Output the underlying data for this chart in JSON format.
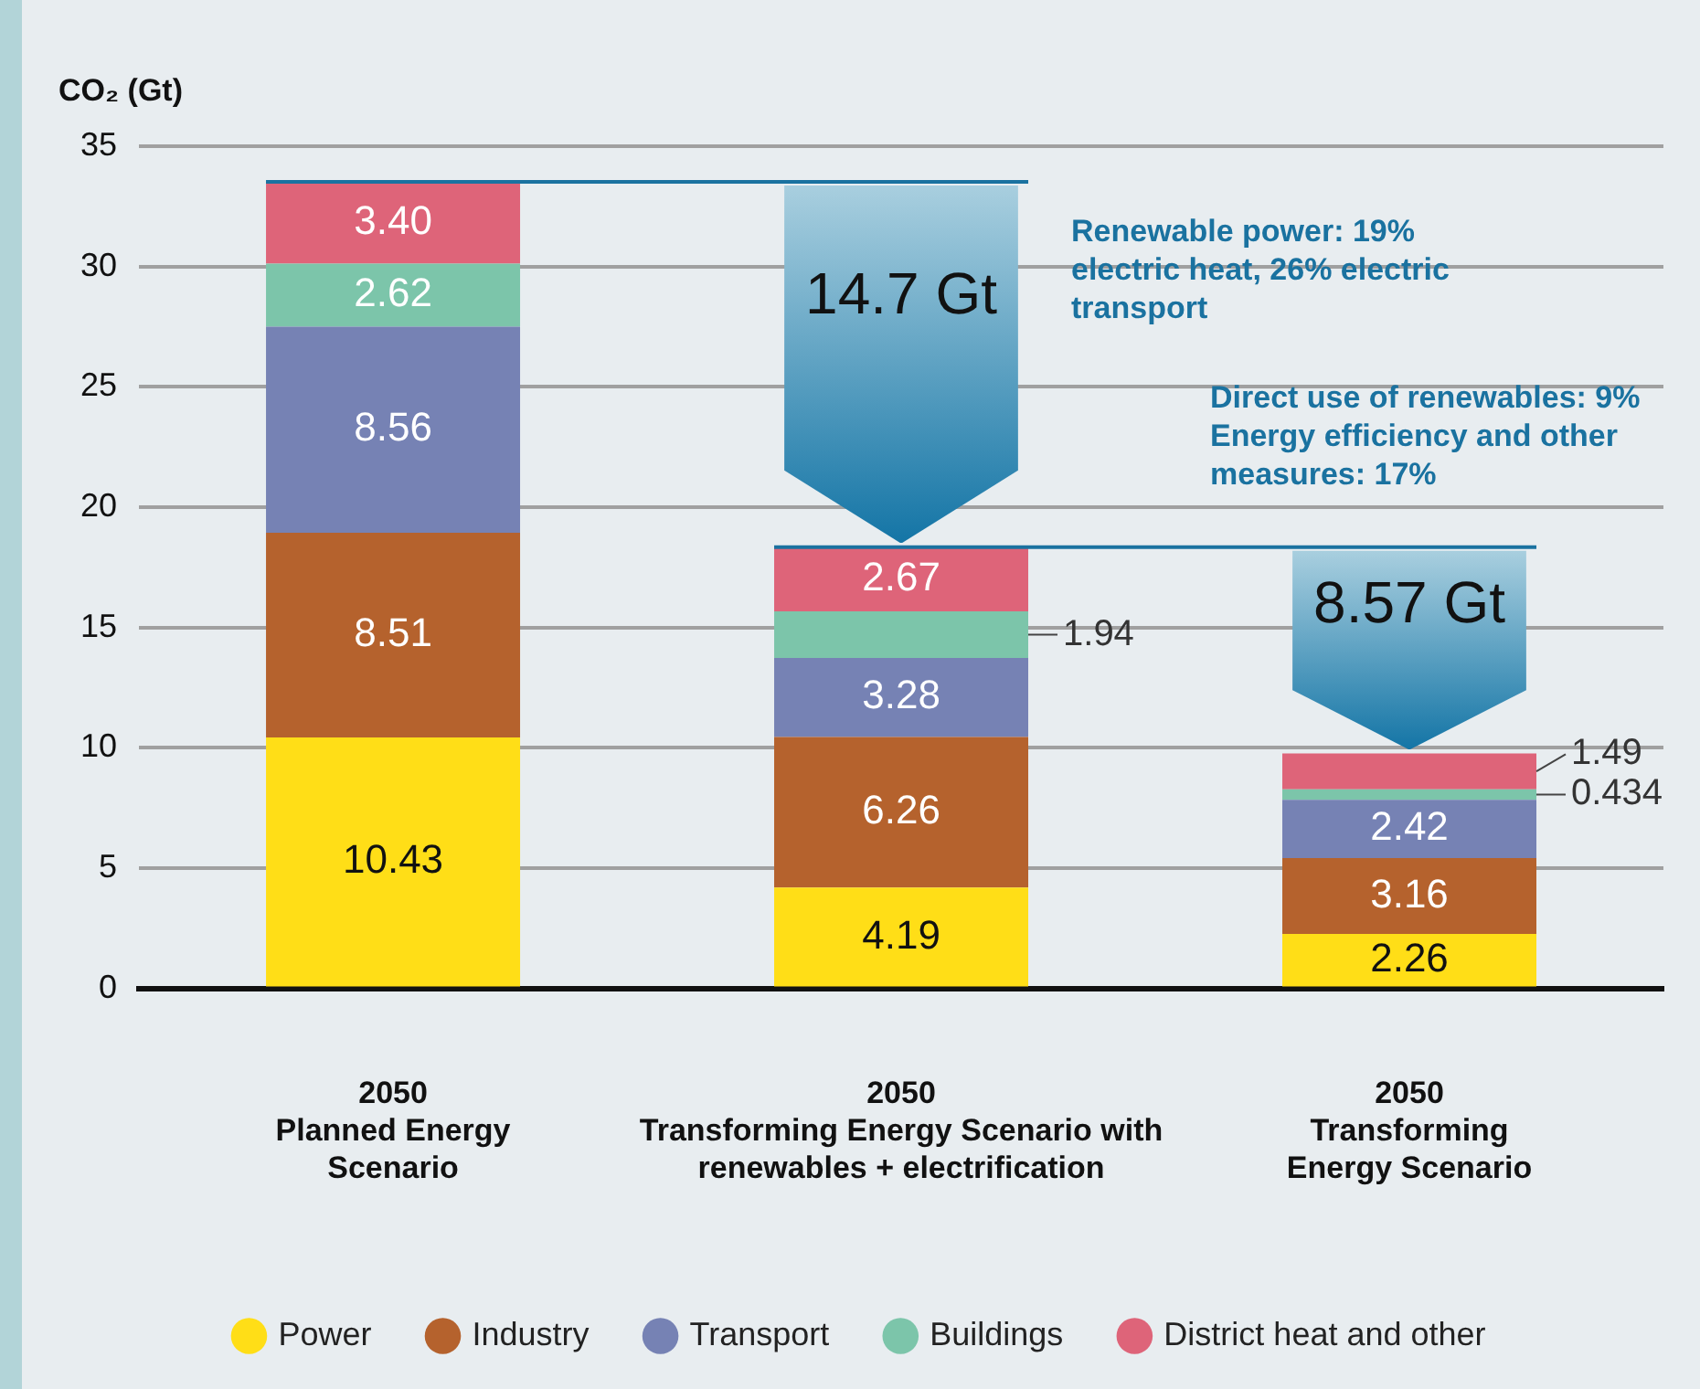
{
  "chart_data": {
    "type": "bar",
    "stacked": true,
    "ylabel": "CO₂ (Gt)",
    "categories": [
      "2050\nPlanned Energy\nScenario",
      "2050\nTransforming Energy Scenario with\nrenewables + electrification",
      "2050\nTransforming\nEnergy Scenario"
    ],
    "series": [
      {
        "name": "Power",
        "color": "#ffde17",
        "values": [
          10.43,
          4.19,
          2.26
        ],
        "value_labels": [
          "10.43",
          "4.19",
          "2.26"
        ]
      },
      {
        "name": "Industry",
        "color": "#b5622d",
        "values": [
          8.51,
          6.26,
          3.16
        ],
        "value_labels": [
          "8.51",
          "6.26",
          "3.16"
        ]
      },
      {
        "name": "Transport",
        "color": "#7682b4",
        "values": [
          8.56,
          3.28,
          2.42
        ],
        "value_labels": [
          "8.56",
          "3.28",
          "2.42"
        ]
      },
      {
        "name": "Buildings",
        "color": "#7cc5aa",
        "values": [
          2.62,
          1.94,
          0.434
        ],
        "value_labels": [
          "2.62",
          "1.94",
          "0.434"
        ]
      },
      {
        "name": "District heat and other",
        "color": "#de6479",
        "values": [
          3.4,
          2.67,
          1.49
        ],
        "value_labels": [
          "3.40",
          "2.67",
          "1.49"
        ]
      }
    ],
    "ref_lines": [
      {
        "axis": "y",
        "value": 33.52,
        "color": "#1a72a0"
      },
      {
        "axis": "y",
        "value": 18.34,
        "color": "#1a72a0"
      }
    ],
    "ylim": [
      0,
      35
    ],
    "yticks": [
      0,
      5,
      10,
      15,
      20,
      25,
      30,
      35
    ],
    "grid": "y",
    "legend": "bottom",
    "annotations": [
      "14.7 Gt",
      "8.57 Gt",
      "Renewable power: 19% electric heat, 26% electric transport",
      "Direct use of renewables: 9% Energy efficiency and other measures: 17%"
    ]
  }
}
